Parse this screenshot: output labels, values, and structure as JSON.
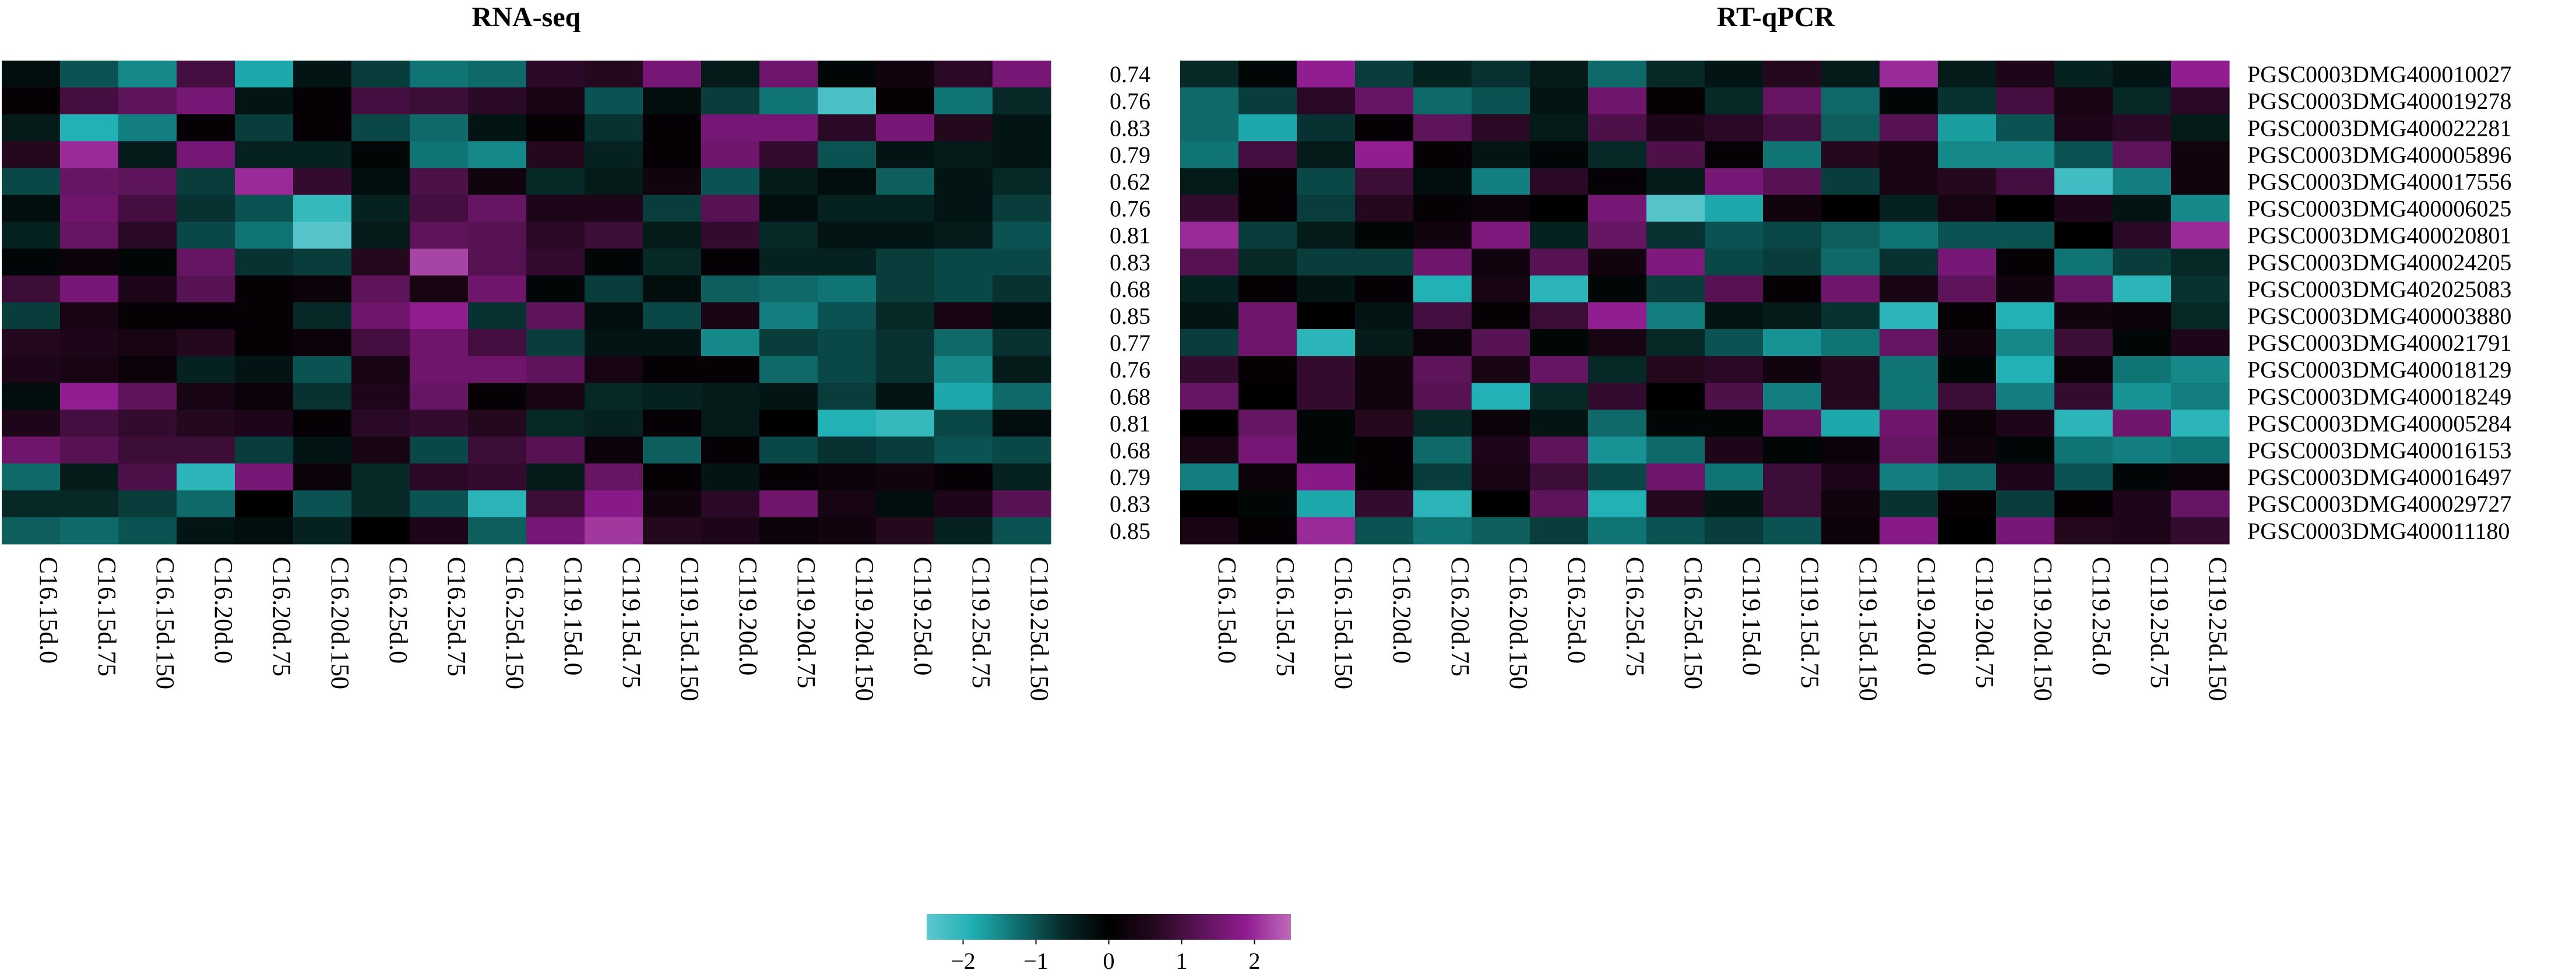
{
  "chart_data": {
    "type": "heatmap",
    "color_scale": {
      "min": -2.5,
      "max": 2.5,
      "stops": [
        "#5ec8ce",
        "#1fb0b4",
        "#0f6e6e",
        "#062a29",
        "#000000",
        "#24081f",
        "#5a1356",
        "#8e1b8e",
        "#bf6bbb"
      ],
      "tick_values": [
        -2,
        -1,
        0,
        1,
        2
      ],
      "tick_labels": [
        "−2",
        "−1",
        "0",
        "1",
        "2"
      ]
    },
    "columns": [
      "C16.15d.0",
      "C16.15d.75",
      "C16.15d.150",
      "C16.20d.0",
      "C16.20d.75",
      "C16.20d.150",
      "C16.25d.0",
      "C16.25d.75",
      "C16.25d.150",
      "C119.15d.0",
      "C119.15d.75",
      "C119.15d.150",
      "C119.20d.0",
      "C119.20d.75",
      "C119.20d.150",
      "C119.25d.0",
      "C119.25d.75",
      "C119.25d.150"
    ],
    "genes": [
      "PGSC0003DMG400010027",
      "PGSC0003DMG400019278",
      "PGSC0003DMG400022281",
      "PGSC0003DMG400005896",
      "PGSC0003DMG400017556",
      "PGSC0003DMG400006025",
      "PGSC0003DMG400020801",
      "PGSC0003DMG400024205",
      "PGSC0003DMG402025083",
      "PGSC0003DMG400003880",
      "PGSC0003DMG400021791",
      "PGSC0003DMG400018129",
      "PGSC0003DMG400018249",
      "PGSC0003DMG400005284",
      "PGSC0003DMG400016153",
      "PGSC0003DMG400016497",
      "PGSC0003DMG400029727",
      "PGSC0003DMG400011180"
    ],
    "correlations": [
      "0.74",
      "0.76",
      "0.83",
      "0.79",
      "0.62",
      "0.76",
      "0.81",
      "0.83",
      "0.68",
      "0.85",
      "0.77",
      "0.76",
      "0.68",
      "0.81",
      "0.68",
      "0.79",
      "0.83",
      "0.85"
    ],
    "panels": [
      {
        "title": "RNA-seq",
        "values": [
          [
            -0.2,
            -1.0,
            -1.5,
            1.0,
            -1.8,
            -0.3,
            -0.8,
            -1.3,
            -1.2,
            0.7,
            0.6,
            1.6,
            -0.4,
            1.5,
            -0.1,
            0.3,
            0.7,
            1.6
          ],
          [
            0.1,
            1.0,
            1.3,
            1.6,
            -0.3,
            0.1,
            1.0,
            0.9,
            0.7,
            0.4,
            -1.0,
            -0.2,
            -0.8,
            -1.3,
            -2.3,
            0.1,
            -1.3,
            -0.6
          ],
          [
            -0.4,
            -1.9,
            -1.4,
            0.1,
            -0.8,
            0.1,
            -0.9,
            -1.2,
            -0.3,
            0.1,
            -0.7,
            0.1,
            1.6,
            1.6,
            0.7,
            1.6,
            0.6,
            -0.3
          ],
          [
            0.6,
            2.0,
            -0.4,
            1.6,
            -0.5,
            -0.5,
            -0.1,
            -1.3,
            -1.5,
            0.6,
            -0.5,
            0.1,
            1.5,
            0.8,
            -1.0,
            -0.3,
            -0.4,
            -0.3
          ],
          [
            -0.9,
            1.4,
            1.3,
            -0.8,
            2.0,
            0.8,
            -0.2,
            1.1,
            0.3,
            -0.6,
            -0.4,
            0.3,
            -1.0,
            -0.4,
            -0.2,
            -1.1,
            -0.3,
            -0.6
          ],
          [
            -0.2,
            1.5,
            1.0,
            -0.7,
            -1.0,
            -2.1,
            -0.5,
            1.0,
            1.4,
            0.5,
            0.5,
            -0.8,
            1.2,
            -0.2,
            -0.5,
            -0.5,
            -0.3,
            -0.8
          ],
          [
            -0.5,
            1.4,
            0.7,
            -0.9,
            -1.3,
            -2.4,
            -0.4,
            1.3,
            1.2,
            0.7,
            0.9,
            -0.4,
            0.8,
            -0.6,
            -0.3,
            -0.3,
            -0.4,
            -1.0
          ],
          [
            -0.1,
            0.2,
            -0.1,
            1.4,
            -0.7,
            -0.8,
            0.6,
            2.2,
            1.2,
            0.8,
            -0.1,
            -0.6,
            0.1,
            -0.5,
            -0.5,
            -0.8,
            -0.9,
            -0.9
          ],
          [
            0.9,
            1.6,
            0.5,
            1.2,
            0.1,
            0.2,
            1.3,
            0.4,
            1.5,
            -0.1,
            -0.8,
            -0.2,
            -1.1,
            -1.2,
            -1.3,
            -0.8,
            -0.9,
            -0.7
          ],
          [
            -0.8,
            0.4,
            0.1,
            0.1,
            0.1,
            -0.6,
            1.5,
            1.9,
            -0.7,
            1.3,
            -0.2,
            -0.9,
            0.4,
            -1.4,
            -1.0,
            -0.6,
            0.4,
            -0.2
          ],
          [
            0.6,
            0.5,
            0.4,
            0.6,
            0.1,
            0.2,
            1.0,
            1.5,
            1.0,
            -0.8,
            -0.3,
            -0.3,
            -1.5,
            -0.8,
            -0.9,
            -0.7,
            -1.2,
            -0.7
          ],
          [
            0.5,
            0.4,
            0.2,
            -0.5,
            -0.3,
            -1.0,
            0.4,
            1.5,
            1.5,
            1.3,
            0.4,
            0.1,
            0.1,
            -1.2,
            -0.9,
            -0.7,
            -1.5,
            -0.4
          ],
          [
            -0.2,
            1.9,
            1.3,
            0.4,
            0.2,
            -0.7,
            0.5,
            1.4,
            0.1,
            0.4,
            -0.6,
            -0.5,
            -0.4,
            -0.3,
            -0.8,
            -0.3,
            -1.8,
            -1.2
          ],
          [
            0.5,
            1.0,
            0.8,
            0.6,
            0.5,
            0.1,
            0.7,
            0.8,
            0.6,
            -0.6,
            -0.5,
            0.1,
            -0.4,
            0.0,
            -1.9,
            -2.1,
            -0.9,
            -0.2
          ],
          [
            1.5,
            1.2,
            0.9,
            0.9,
            -0.8,
            -0.3,
            0.4,
            -0.9,
            0.9,
            1.2,
            0.2,
            -1.1,
            0.1,
            -0.9,
            -0.7,
            -0.8,
            -1.0,
            -0.9
          ],
          [
            -1.2,
            -0.4,
            1.1,
            -2.0,
            1.6,
            0.2,
            -0.6,
            0.7,
            0.8,
            -0.4,
            1.4,
            0.1,
            -0.3,
            0.1,
            0.2,
            0.3,
            0.1,
            -0.5
          ],
          [
            -0.6,
            -0.6,
            -0.8,
            -1.2,
            0.0,
            -1.0,
            -0.6,
            -1.0,
            -2.0,
            0.9,
            1.8,
            0.3,
            0.7,
            1.5,
            0.4,
            -0.2,
            0.5,
            1.2
          ],
          [
            -1.1,
            -1.2,
            -1.0,
            -0.3,
            -0.2,
            -0.5,
            0.0,
            0.5,
            -1.1,
            1.6,
            2.1,
            0.6,
            0.5,
            0.2,
            0.3,
            0.6,
            -0.5,
            -1.0
          ]
        ]
      },
      {
        "title": "RT-qPCR",
        "values": [
          [
            -0.6,
            -0.1,
            1.9,
            -0.8,
            -0.5,
            -0.7,
            -0.4,
            -1.2,
            -0.6,
            -0.3,
            0.6,
            -0.4,
            2.0,
            -0.4,
            0.5,
            -0.5,
            -0.3,
            1.9
          ],
          [
            -1.2,
            -0.8,
            0.7,
            1.4,
            -1.2,
            -1.0,
            -0.3,
            1.5,
            0.1,
            -0.6,
            1.4,
            -1.2,
            -0.1,
            -0.7,
            1.0,
            0.4,
            -0.6,
            0.7
          ],
          [
            -1.2,
            -1.8,
            -0.7,
            0.1,
            1.3,
            0.7,
            -0.4,
            1.1,
            0.5,
            0.7,
            1.0,
            -1.1,
            1.2,
            -1.7,
            -1.0,
            0.5,
            0.7,
            -0.4
          ],
          [
            -1.3,
            1.0,
            -0.4,
            1.9,
            0.1,
            -0.3,
            -0.1,
            -0.6,
            1.1,
            0.1,
            -1.3,
            0.6,
            0.4,
            -1.5,
            -1.5,
            -1.0,
            1.3,
            0.3
          ],
          [
            -0.4,
            0.1,
            -0.9,
            0.9,
            -0.2,
            -1.4,
            0.7,
            0.1,
            -0.4,
            1.6,
            1.2,
            -0.8,
            0.4,
            0.6,
            1.0,
            -2.2,
            -1.4,
            0.3
          ],
          [
            0.8,
            0.1,
            -0.8,
            0.6,
            0.1,
            0.2,
            0.0,
            1.6,
            -2.4,
            -1.8,
            0.3,
            0.0,
            -0.5,
            0.4,
            0.0,
            0.5,
            -0.3,
            -1.5
          ],
          [
            2.0,
            -0.8,
            -0.4,
            -0.1,
            0.3,
            1.7,
            -0.5,
            1.4,
            -0.7,
            -1.0,
            -0.9,
            -1.1,
            -1.3,
            -1.0,
            -1.0,
            0.0,
            0.7,
            2.0
          ],
          [
            1.2,
            -0.6,
            -0.8,
            -0.8,
            1.5,
            0.3,
            1.2,
            0.3,
            1.7,
            -0.9,
            -0.8,
            -1.2,
            -0.7,
            1.6,
            0.1,
            -1.3,
            -0.8,
            -0.6
          ],
          [
            -0.5,
            0.1,
            -0.3,
            0.1,
            -1.9,
            0.4,
            -2.0,
            -0.1,
            -0.8,
            1.2,
            0.1,
            1.5,
            0.4,
            1.3,
            0.3,
            1.4,
            -2.0,
            -0.7
          ],
          [
            -0.3,
            1.5,
            0.0,
            -0.3,
            1.0,
            0.1,
            0.9,
            1.9,
            -1.4,
            -0.3,
            -0.4,
            -0.7,
            -2.0,
            0.1,
            -1.9,
            0.3,
            0.2,
            -0.6
          ],
          [
            -0.8,
            1.5,
            -2.0,
            -0.4,
            0.2,
            1.2,
            -0.1,
            0.4,
            -0.6,
            -1.0,
            -1.6,
            -1.3,
            1.4,
            0.3,
            -1.5,
            0.9,
            -0.1,
            0.5
          ],
          [
            0.8,
            0.1,
            0.8,
            0.3,
            1.3,
            0.4,
            1.4,
            -0.6,
            0.6,
            0.7,
            0.3,
            0.6,
            -1.3,
            -0.1,
            -1.9,
            0.2,
            -1.3,
            -1.5
          ],
          [
            1.4,
            0.0,
            0.8,
            0.3,
            1.2,
            -1.9,
            -0.6,
            0.8,
            0.0,
            1.1,
            -1.4,
            0.6,
            -1.3,
            0.9,
            -1.4,
            0.8,
            -1.6,
            -1.4
          ],
          [
            0.0,
            1.4,
            -0.1,
            0.6,
            -0.6,
            0.2,
            -0.3,
            -1.2,
            -0.1,
            -0.1,
            1.4,
            -1.8,
            1.5,
            0.2,
            0.5,
            -2.0,
            1.5,
            -2.0
          ],
          [
            0.4,
            1.6,
            -0.1,
            0.1,
            -1.2,
            0.5,
            1.3,
            -1.6,
            -1.2,
            0.5,
            -0.1,
            0.2,
            1.4,
            0.3,
            -0.1,
            -1.3,
            -1.4,
            -1.3
          ],
          [
            -1.4,
            0.2,
            1.8,
            0.1,
            -0.8,
            0.4,
            0.9,
            -0.9,
            1.5,
            -1.3,
            0.9,
            0.5,
            -1.4,
            -1.2,
            0.5,
            -1.0,
            -0.1,
            0.2
          ],
          [
            0.0,
            -0.1,
            -1.8,
            0.8,
            -2.0,
            0.0,
            1.3,
            -1.9,
            0.6,
            -0.3,
            0.9,
            0.3,
            -0.7,
            0.1,
            -0.8,
            0.1,
            0.5,
            1.4
          ],
          [
            0.4,
            0.1,
            2.0,
            -1.0,
            -1.3,
            -1.1,
            -0.8,
            -1.3,
            -1.0,
            -0.8,
            -1.0,
            0.2,
            1.8,
            0.0,
            1.6,
            0.6,
            0.5,
            0.8
          ]
        ]
      }
    ]
  }
}
